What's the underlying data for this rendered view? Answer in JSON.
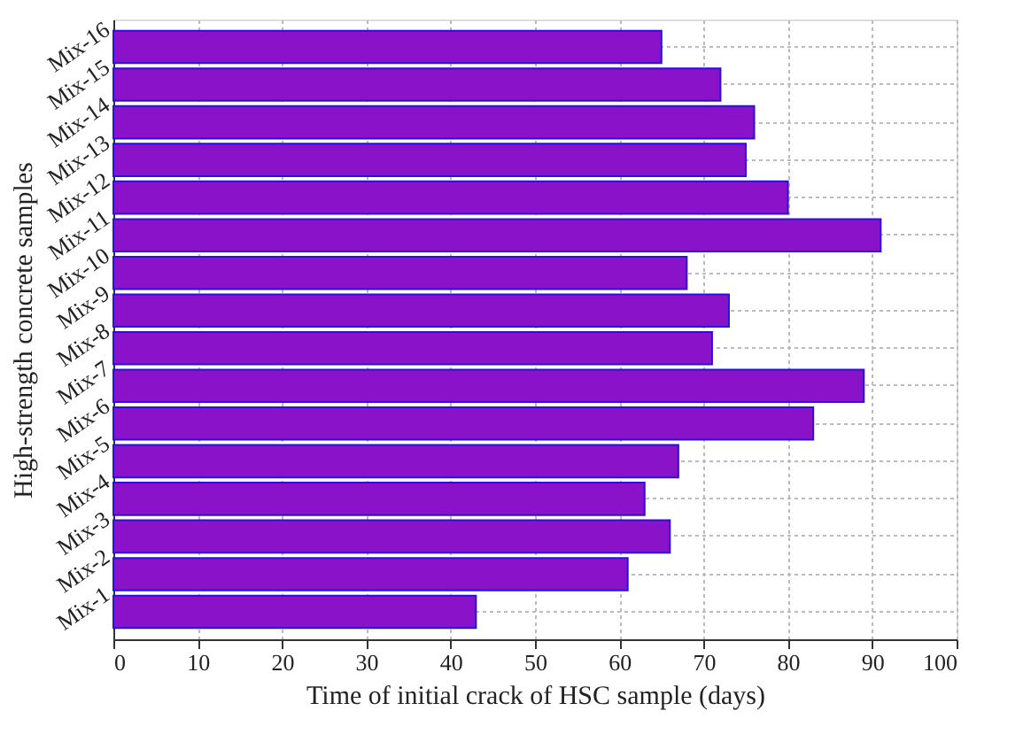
{
  "chart_data": {
    "type": "bar",
    "orientation": "horizontal",
    "xlabel": "Time of initial crack of HSC sample (days)",
    "ylabel": "High-strength concrete samples",
    "categories": [
      "Mix-16",
      "Mix-15",
      "Mix-14",
      "Mix-13",
      "Mix-12",
      "Mix-11",
      "Mix-10",
      "Mix-9",
      "Mix-8",
      "Mix-7",
      "Mix-6",
      "Mix-5",
      "Mix-4",
      "Mix-3",
      "Mix-2",
      "Mix-1"
    ],
    "values": [
      65,
      72,
      76,
      75,
      80,
      91,
      68,
      73,
      71,
      89,
      83,
      67,
      63,
      66,
      61,
      43
    ],
    "color": "#8a12c8",
    "xlim": [
      0,
      100
    ],
    "xticks": [
      0,
      10,
      20,
      30,
      40,
      50,
      60,
      70,
      80,
      90,
      100
    ],
    "grid": true
  }
}
